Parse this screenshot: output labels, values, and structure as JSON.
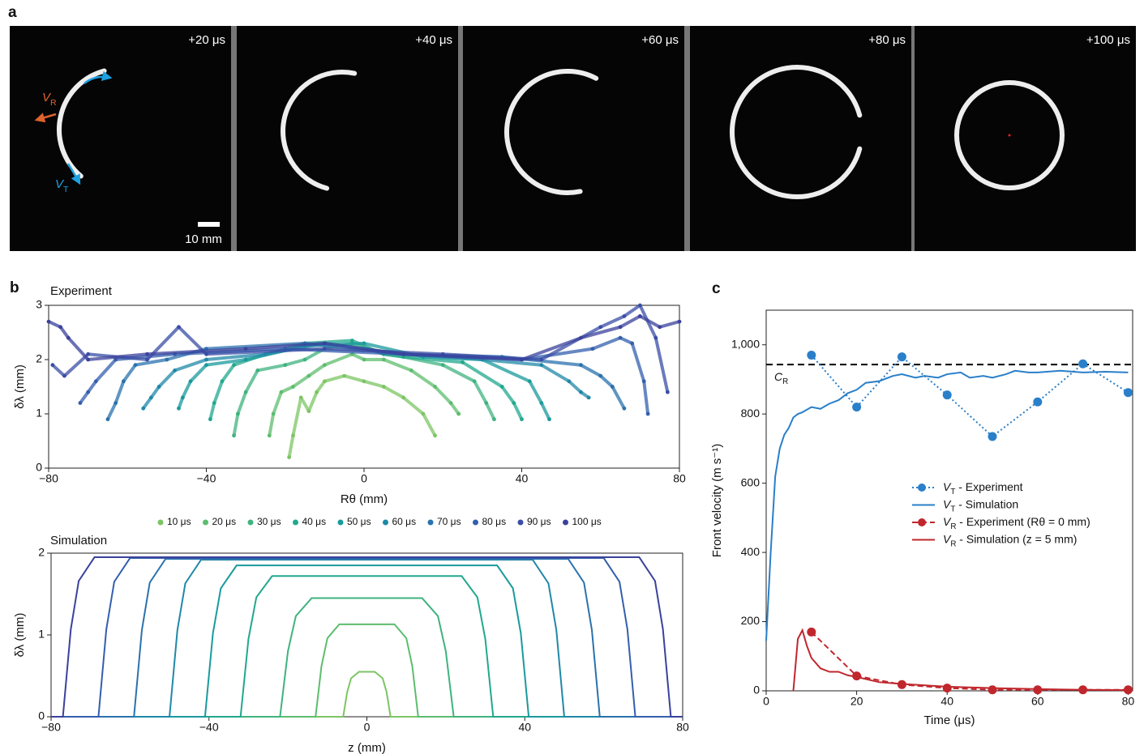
{
  "figure_a": {
    "panel_label": "a",
    "frames": [
      "+20 μs",
      "+40 μs",
      "+60 μs",
      "+80 μs",
      "+100 μs"
    ],
    "scale_bar": "10 mm",
    "radial_label": "VR",
    "tangential_label": "VT"
  },
  "chart_data": [
    {
      "type": "scatter",
      "panel_label": "b",
      "title": "Experiment",
      "xlabel": "Rθ (mm)",
      "ylabel": "δλ (mm)",
      "xlim": [
        -80,
        80
      ],
      "ylim": [
        0,
        3
      ],
      "xticks": [
        {
          "value": -80,
          "label": "−80"
        },
        {
          "value": -40,
          "label": "−40"
        },
        0,
        40,
        80
      ],
      "yticks": [
        0,
        1,
        2,
        3
      ],
      "legend": "bottom",
      "series": [
        {
          "name": "10 μs",
          "color": "#7cc564",
          "x": [
            -19,
            -18,
            -16,
            -14,
            -12,
            -10,
            -5,
            0,
            5,
            10,
            15,
            18
          ],
          "values": [
            0.2,
            0.6,
            1.3,
            1.05,
            1.4,
            1.6,
            1.7,
            1.6,
            1.5,
            1.3,
            1.0,
            0.6
          ]
        },
        {
          "name": "20 μs",
          "color": "#5dbd6e",
          "x": [
            -24,
            -23,
            -21,
            -18,
            -14,
            -10,
            -3,
            0,
            5,
            12,
            18,
            22,
            24
          ],
          "values": [
            0.6,
            1.0,
            1.4,
            1.5,
            1.7,
            1.9,
            2.1,
            2.0,
            2.0,
            1.8,
            1.5,
            1.2,
            1.0
          ]
        },
        {
          "name": "30 μs",
          "color": "#3fb37f",
          "x": [
            -33,
            -32,
            -30,
            -27,
            -20,
            -15,
            -10,
            -3,
            5,
            10,
            20,
            28,
            31,
            33
          ],
          "values": [
            0.6,
            1.0,
            1.4,
            1.8,
            1.9,
            2.0,
            2.2,
            2.3,
            2.1,
            2.05,
            1.9,
            1.6,
            1.2,
            0.9
          ]
        },
        {
          "name": "40 μs",
          "color": "#21a88e",
          "x": [
            -39,
            -38,
            -36,
            -33,
            -25,
            -15,
            -3,
            5,
            10,
            25,
            35,
            38,
            40
          ],
          "values": [
            0.9,
            1.2,
            1.6,
            1.9,
            2.1,
            2.3,
            2.35,
            2.1,
            2.05,
            1.95,
            1.5,
            1.2,
            0.9
          ]
        },
        {
          "name": "50 μs",
          "color": "#1a9a9c",
          "x": [
            -47,
            -46,
            -44,
            -40,
            -30,
            -15,
            0,
            15,
            30,
            42,
            45,
            47
          ],
          "values": [
            1.1,
            1.3,
            1.6,
            1.9,
            2.0,
            2.25,
            2.3,
            2.05,
            2.0,
            1.6,
            1.2,
            0.9
          ]
        },
        {
          "name": "60 μs",
          "color": "#2088a8",
          "x": [
            -56,
            -54,
            -52,
            -48,
            -40,
            -25,
            -10,
            10,
            30,
            45,
            52,
            55,
            57
          ],
          "values": [
            1.1,
            1.3,
            1.5,
            1.8,
            2.0,
            2.1,
            2.3,
            2.1,
            2.0,
            1.9,
            1.6,
            1.4,
            1.3
          ]
        },
        {
          "name": "70 μs",
          "color": "#2a72ad",
          "x": [
            -65,
            -63,
            -61,
            -58,
            -50,
            -40,
            -15,
            10,
            35,
            55,
            60,
            63,
            66
          ],
          "values": [
            0.9,
            1.2,
            1.6,
            1.9,
            2.0,
            2.2,
            2.3,
            2.1,
            2.05,
            1.9,
            1.7,
            1.5,
            1.1
          ]
        },
        {
          "name": "80 μs",
          "color": "#335fad",
          "x": [
            -72,
            -70,
            -68,
            -63,
            -48,
            -20,
            10,
            40,
            58,
            65,
            68,
            71,
            72
          ],
          "values": [
            1.2,
            1.4,
            1.6,
            2.0,
            2.1,
            2.2,
            2.1,
            2.0,
            2.2,
            2.4,
            2.3,
            1.6,
            1.0
          ]
        },
        {
          "name": "90 μs",
          "color": "#3a4ea6",
          "x": [
            -79,
            -76,
            -70,
            -55,
            -47,
            -40,
            -10,
            20,
            45,
            60,
            66,
            70,
            74,
            77
          ],
          "values": [
            1.9,
            1.7,
            2.1,
            2.0,
            2.6,
            2.1,
            2.2,
            2.1,
            2.0,
            2.6,
            2.8,
            3.0,
            2.4,
            1.4
          ]
        },
        {
          "name": "100 μs",
          "color": "#3b419c",
          "x": [
            -80,
            -77,
            -75,
            -70,
            -55,
            -30,
            -10,
            10,
            40,
            55,
            65,
            70,
            75,
            80
          ],
          "values": [
            2.7,
            2.6,
            2.4,
            2.0,
            2.1,
            2.2,
            2.3,
            2.1,
            2.0,
            2.4,
            2.6,
            2.8,
            2.6,
            2.7
          ]
        }
      ]
    },
    {
      "type": "line",
      "title": "Simulation",
      "xlabel": "z (mm)",
      "ylabel": "δλ (mm)",
      "xlim": [
        -80,
        80
      ],
      "ylim": [
        0,
        2
      ],
      "xticks": [
        {
          "value": -80,
          "label": "−80"
        },
        {
          "value": -40,
          "label": "−40"
        },
        0,
        40,
        80
      ],
      "yticks": [
        0,
        1,
        2
      ],
      "series": [
        {
          "color": "#7cc564",
          "x": [
            -80,
            -6,
            -5,
            -4,
            -2,
            2,
            4,
            5,
            6,
            80
          ],
          "values": [
            0,
            0,
            0.3,
            0.47,
            0.55,
            0.55,
            0.47,
            0.3,
            0,
            0
          ]
        },
        {
          "color": "#5dbd6e",
          "x": [
            -80,
            -13,
            -11.5,
            -10,
            -7,
            7,
            10,
            11.5,
            13,
            80
          ],
          "values": [
            0,
            0,
            0.62,
            0.96,
            1.13,
            1.13,
            0.96,
            0.62,
            0,
            0
          ]
        },
        {
          "color": "#3fb37f",
          "x": [
            -80,
            -22,
            -20,
            -18,
            -14,
            14,
            18,
            20,
            22,
            80
          ],
          "values": [
            0,
            0,
            0.8,
            1.23,
            1.45,
            1.45,
            1.23,
            0.8,
            0,
            0
          ]
        },
        {
          "color": "#21a88e",
          "x": [
            -80,
            -32,
            -30,
            -28,
            -24,
            24,
            28,
            30,
            32,
            80
          ],
          "values": [
            0,
            0,
            0.95,
            1.46,
            1.72,
            1.72,
            1.46,
            0.95,
            0,
            0
          ]
        },
        {
          "color": "#1a9a9c",
          "x": [
            -80,
            -41,
            -39,
            -37,
            -33,
            33,
            37,
            39,
            41,
            80
          ],
          "values": [
            0,
            0,
            1.02,
            1.57,
            1.85,
            1.85,
            1.57,
            1.02,
            0,
            0
          ]
        },
        {
          "color": "#2088a8",
          "x": [
            -80,
            -50,
            -48,
            -46,
            -42,
            42,
            46,
            48,
            50,
            80
          ],
          "values": [
            0,
            0,
            1.06,
            1.63,
            1.92,
            1.92,
            1.63,
            1.06,
            0,
            0
          ]
        },
        {
          "color": "#2a72ad",
          "x": [
            -80,
            -59,
            -57,
            -55,
            -51,
            51,
            55,
            57,
            59,
            80
          ],
          "values": [
            0,
            0,
            1.06,
            1.64,
            1.93,
            1.93,
            1.64,
            1.06,
            0,
            0
          ]
        },
        {
          "color": "#335fad",
          "x": [
            -80,
            -68,
            -66,
            -64,
            -60,
            60,
            64,
            66,
            68,
            80
          ],
          "values": [
            0,
            0,
            1.07,
            1.65,
            1.94,
            1.94,
            1.65,
            1.07,
            0,
            0
          ]
        },
        {
          "color": "#3b419c",
          "x": [
            -80,
            -77,
            -75,
            -73,
            -69,
            69,
            73,
            75,
            77,
            80
          ],
          "values": [
            0,
            0,
            1.07,
            1.66,
            1.95,
            1.95,
            1.66,
            1.07,
            0,
            0
          ]
        }
      ]
    },
    {
      "type": "line",
      "panel_label": "c",
      "xlabel": "Time (μs)",
      "ylabel": "Front velocity (m s⁻¹)",
      "xlim": [
        0,
        81
      ],
      "ylim": [
        0,
        1100
      ],
      "xticks": [
        0,
        20,
        40,
        60,
        80
      ],
      "yticks": [
        0,
        200,
        400,
        600,
        800,
        {
          "value": 1000,
          "label": "1,000"
        }
      ],
      "legend": "center-right",
      "reference_line": {
        "value": 943,
        "label": "CR",
        "color": "#000000"
      },
      "series": [
        {
          "name": "VT - Experiment",
          "color": "#2a7fc9",
          "dash": "dotted",
          "marker": true,
          "x": [
            10,
            20,
            30,
            40,
            50,
            60,
            70,
            80
          ],
          "values": [
            970,
            820,
            965,
            855,
            735,
            835,
            945,
            862
          ]
        },
        {
          "name": "VT - Simulation",
          "color": "#2a7fc9",
          "dash": "solid",
          "marker": false,
          "x": [
            0,
            1,
            2,
            3,
            4,
            5,
            6,
            7,
            8,
            10,
            12,
            14,
            16,
            18,
            20,
            22,
            25,
            28,
            30,
            33,
            35,
            38,
            40,
            43,
            45,
            48,
            50,
            53,
            55,
            58,
            60,
            65,
            70,
            75,
            80
          ],
          "values": [
            145,
            400,
            620,
            700,
            740,
            760,
            790,
            800,
            805,
            820,
            815,
            830,
            840,
            860,
            870,
            890,
            895,
            910,
            915,
            905,
            910,
            905,
            915,
            920,
            905,
            910,
            905,
            915,
            925,
            920,
            920,
            925,
            920,
            922,
            920
          ]
        },
        {
          "name": "VR - Experiment (Rθ = 0 mm)",
          "color": "#c0272d",
          "dash": "dashed",
          "marker": true,
          "x": [
            10,
            20,
            30,
            40,
            50,
            60,
            70,
            80
          ],
          "values": [
            170,
            43,
            18,
            8,
            3,
            3,
            3,
            3
          ]
        },
        {
          "name": "VR - Simulation (z = 5 mm)",
          "color": "#c0272d",
          "dash": "solid",
          "marker": false,
          "x": [
            6,
            7,
            8,
            9,
            10,
            12,
            14,
            16,
            18,
            20,
            25,
            30,
            40,
            50,
            60,
            70,
            80
          ],
          "values": [
            0,
            150,
            175,
            130,
            95,
            65,
            55,
            55,
            45,
            40,
            25,
            20,
            12,
            8,
            5,
            3,
            2
          ]
        }
      ]
    }
  ]
}
